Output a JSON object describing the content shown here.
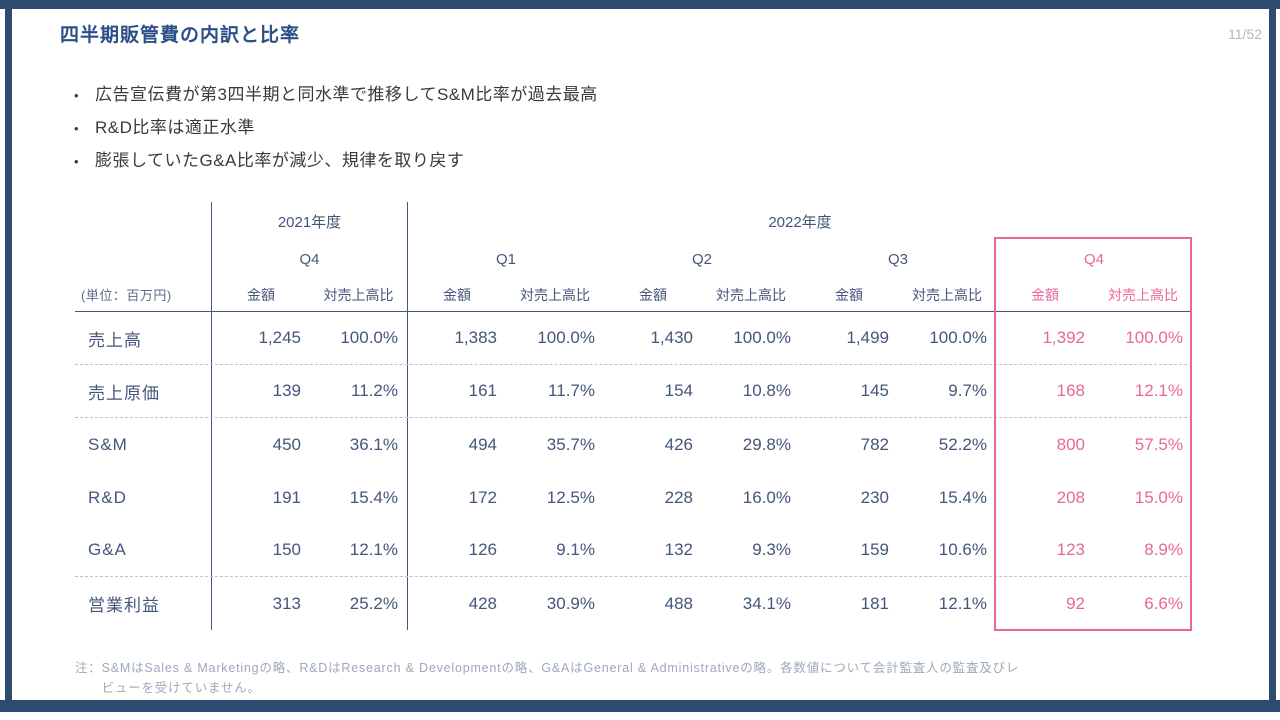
{
  "slide": {
    "title": "四半期販管費の内訳と比率",
    "page_number": "11/52",
    "bullet_glyph": "•",
    "bullets": [
      "広告宣伝費が第3四半期と同水準で推移してS&M比率が過去最高",
      "R&D比率は適正水準",
      "膨張していたG&A比率が減少、規律を取り戻す"
    ],
    "note_label": "注：",
    "note_lines": [
      "S&MはSales & Marketingの略、R&DはResearch & Developmentの略、G&AはGeneral & Administrativeの略。各数値について会計監査人の監査及びレ",
      "ビューを受けていません。"
    ]
  },
  "table": {
    "unit_label": "(単位：百万円)",
    "year_2021": "2021年度",
    "year_2022": "2022年度",
    "quarters": [
      "Q4",
      "Q1",
      "Q2",
      "Q3",
      "Q4"
    ],
    "col_headers": {
      "amount": "金額",
      "ratio": "対売上高比"
    },
    "highlight_color": "#e8679b",
    "rows": [
      {
        "label": "売上高",
        "sep_below": true,
        "cells": [
          [
            "1,245",
            "100.0%"
          ],
          [
            "1,383",
            "100.0%"
          ],
          [
            "1,430",
            "100.0%"
          ],
          [
            "1,499",
            "100.0%"
          ],
          [
            "1,392",
            "100.0%"
          ]
        ]
      },
      {
        "label": "売上原価",
        "sep_below": true,
        "cells": [
          [
            "139",
            "11.2%"
          ],
          [
            "161",
            "11.7%"
          ],
          [
            "154",
            "10.8%"
          ],
          [
            "145",
            "9.7%"
          ],
          [
            "168",
            "12.1%"
          ]
        ]
      },
      {
        "label": "S&M",
        "sep_below": false,
        "cells": [
          [
            "450",
            "36.1%"
          ],
          [
            "494",
            "35.7%"
          ],
          [
            "426",
            "29.8%"
          ],
          [
            "782",
            "52.2%"
          ],
          [
            "800",
            "57.5%"
          ]
        ]
      },
      {
        "label": "R&D",
        "sep_below": false,
        "cells": [
          [
            "191",
            "15.4%"
          ],
          [
            "172",
            "12.5%"
          ],
          [
            "228",
            "16.0%"
          ],
          [
            "230",
            "15.4%"
          ],
          [
            "208",
            "15.0%"
          ]
        ]
      },
      {
        "label": "G&A",
        "sep_below": true,
        "cells": [
          [
            "150",
            "12.1%"
          ],
          [
            "126",
            "9.1%"
          ],
          [
            "132",
            "9.3%"
          ],
          [
            "159",
            "10.6%"
          ],
          [
            "123",
            "8.9%"
          ]
        ]
      },
      {
        "label": "営業利益",
        "sep_below": false,
        "cells": [
          [
            "313",
            "25.2%"
          ],
          [
            "428",
            "30.9%"
          ],
          [
            "488",
            "34.1%"
          ],
          [
            "181",
            "12.1%"
          ],
          [
            "92",
            "6.6%"
          ]
        ]
      }
    ]
  }
}
